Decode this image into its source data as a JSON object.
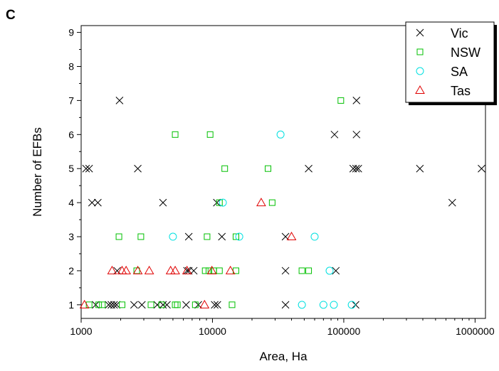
{
  "panel_label": "C",
  "chart_data": {
    "type": "scatter",
    "title": "",
    "xlabel": "Area, Ha",
    "ylabel": "Number of EFBs",
    "x_scale": "log",
    "xlim": [
      1000,
      1200000
    ],
    "ylim": [
      0.6,
      9.2
    ],
    "x_ticks": [
      1000,
      10000,
      100000,
      1000000
    ],
    "x_tick_labels": [
      "1000",
      "10000",
      "100000",
      "1000000"
    ],
    "y_ticks": [
      1,
      2,
      3,
      4,
      5,
      6,
      7,
      8,
      9
    ],
    "y_tick_labels": [
      "1",
      "2",
      "3",
      "4",
      "5",
      "6",
      "7",
      "8",
      "9"
    ],
    "grid": false,
    "legend_position": "top-right",
    "series": [
      {
        "name": "Vic",
        "marker": "x",
        "color": "#000000",
        "points": [
          [
            1290,
            1
          ],
          [
            1620,
            1
          ],
          [
            1700,
            1
          ],
          [
            1780,
            1
          ],
          [
            1860,
            1
          ],
          [
            2530,
            1
          ],
          [
            2900,
            1
          ],
          [
            3800,
            1
          ],
          [
            4200,
            1
          ],
          [
            4500,
            1
          ],
          [
            6300,
            1
          ],
          [
            7800,
            1
          ],
          [
            10400,
            1
          ],
          [
            10900,
            1
          ],
          [
            36000,
            1
          ],
          [
            123000,
            1
          ],
          [
            1880,
            2
          ],
          [
            6400,
            2
          ],
          [
            6600,
            2
          ],
          [
            7200,
            2
          ],
          [
            36000,
            2
          ],
          [
            87000,
            2
          ],
          [
            6600,
            3
          ],
          [
            11800,
            3
          ],
          [
            36000,
            3
          ],
          [
            1210,
            4
          ],
          [
            1340,
            4
          ],
          [
            4200,
            4
          ],
          [
            10800,
            4
          ],
          [
            670000,
            4
          ],
          [
            1090,
            5
          ],
          [
            1150,
            5
          ],
          [
            2700,
            5
          ],
          [
            54000,
            5
          ],
          [
            118000,
            5
          ],
          [
            124000,
            5
          ],
          [
            129000,
            5
          ],
          [
            380000,
            5
          ],
          [
            1120000,
            5
          ],
          [
            85000,
            6
          ],
          [
            125000,
            6
          ],
          [
            1960,
            7
          ],
          [
            125000,
            7
          ]
        ]
      },
      {
        "name": "NSW",
        "marker": "square",
        "color": "#00c000",
        "points": [
          [
            1150,
            1
          ],
          [
            1360,
            1
          ],
          [
            1450,
            1
          ],
          [
            2050,
            1
          ],
          [
            3400,
            1
          ],
          [
            4100,
            1
          ],
          [
            5200,
            1
          ],
          [
            5400,
            1
          ],
          [
            7400,
            1
          ],
          [
            14100,
            1
          ],
          [
            2650,
            2
          ],
          [
            8800,
            2
          ],
          [
            9400,
            2
          ],
          [
            10200,
            2
          ],
          [
            11300,
            2
          ],
          [
            15100,
            2
          ],
          [
            48000,
            2
          ],
          [
            54000,
            2
          ],
          [
            1940,
            3
          ],
          [
            2850,
            3
          ],
          [
            9100,
            3
          ],
          [
            15100,
            3
          ],
          [
            11300,
            4
          ],
          [
            28500,
            4
          ],
          [
            12400,
            5
          ],
          [
            26500,
            5
          ],
          [
            5200,
            6
          ],
          [
            9600,
            6
          ],
          [
            95000,
            7
          ]
        ]
      },
      {
        "name": "SA",
        "marker": "circle",
        "color": "#00e0e0",
        "points": [
          [
            48000,
            1
          ],
          [
            70000,
            1
          ],
          [
            84000,
            1
          ],
          [
            115000,
            1
          ],
          [
            78000,
            2
          ],
          [
            5000,
            3
          ],
          [
            16000,
            3
          ],
          [
            60000,
            3
          ],
          [
            12000,
            4
          ],
          [
            33000,
            6
          ]
        ]
      },
      {
        "name": "Tas",
        "marker": "triangle",
        "color": "#e00000",
        "points": [
          [
            1060,
            1
          ],
          [
            8700,
            1
          ],
          [
            1720,
            2
          ],
          [
            2050,
            2
          ],
          [
            2200,
            2
          ],
          [
            2700,
            2
          ],
          [
            3300,
            2
          ],
          [
            4800,
            2
          ],
          [
            5200,
            2
          ],
          [
            6400,
            2
          ],
          [
            9900,
            2
          ],
          [
            13700,
            2
          ],
          [
            40000,
            3
          ],
          [
            23500,
            4
          ]
        ]
      }
    ]
  }
}
